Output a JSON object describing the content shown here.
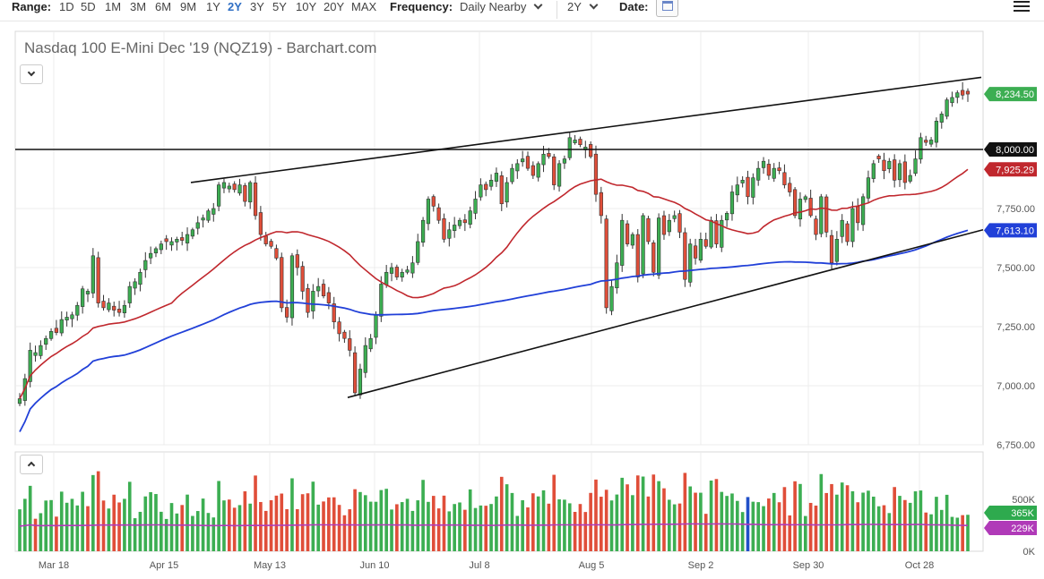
{
  "toolbar": {
    "range_label": "Range:",
    "ranges": [
      "1D",
      "5D",
      "1M",
      "3M",
      "6M",
      "9M",
      "1Y",
      "2Y",
      "3Y",
      "5Y",
      "10Y",
      "20Y",
      "MAX"
    ],
    "active_range": "2Y",
    "frequency_label": "Frequency:",
    "frequency_value": "Daily Nearby",
    "period_value": "2Y",
    "date_label": "Date:"
  },
  "colors": {
    "up": "#3cae52",
    "down": "#e04e39",
    "ma_fast": "#c0272d",
    "ma_slow": "#2140d8",
    "volume_avg": "#b03ab8",
    "volume_highlight": "#2150c8"
  },
  "chart_data": {
    "type": "candlestick",
    "title": "Nasdaq 100 E-Mini Dec '19 (NQZ19) - Barchart.com",
    "x_ticks": [
      "Mar 18",
      "Apr 15",
      "May 13",
      "Jun 10",
      "Jul 8",
      "Aug 5",
      "Sep 2",
      "Sep 30",
      "Oct 28"
    ],
    "y_ticks": [
      "6,750.00",
      "7,000.00",
      "7,250.00",
      "7,500.00",
      "7,750.00",
      "8,000.00"
    ],
    "ylim": [
      6750,
      8400
    ],
    "last_price_label": "8,234.50",
    "ma_fast_label": "7,925.29",
    "ma_slow_label": "7,613.10",
    "horizontal_level_label": "8,000.00",
    "horizontal_level": 8000,
    "upper_trendline": [
      [
        7860,
        8305
      ]
    ],
    "lower_trendline": [
      [
        6950,
        7660
      ]
    ],
    "closes": [
      6945,
      7030,
      7150,
      7140,
      7170,
      7200,
      7230,
      7225,
      7280,
      7290,
      7300,
      7340,
      7410,
      7400,
      7550,
      7350,
      7330,
      7350,
      7320,
      7310,
      7340,
      7420,
      7440,
      7480,
      7530,
      7560,
      7580,
      7600,
      7610,
      7610,
      7620,
      7615,
      7640,
      7660,
      7690,
      7710,
      7740,
      7750,
      7850,
      7860,
      7845,
      7830,
      7850,
      7780,
      7860,
      7720,
      7640,
      7600,
      7590,
      7540,
      7330,
      7290,
      7550,
      7500,
      7400,
      7310,
      7400,
      7420,
      7380,
      7350,
      7270,
      7220,
      7200,
      7150,
      6970,
      7070,
      7170,
      7200,
      7300,
      7430,
      7480,
      7500,
      7460,
      7480,
      7490,
      7520,
      7610,
      7700,
      7790,
      7760,
      7700,
      7620,
      7660,
      7680,
      7700,
      7690,
      7740,
      7790,
      7850,
      7830,
      7870,
      7900,
      7770,
      7860,
      7920,
      7940,
      7960,
      7920,
      7890,
      7940,
      7980,
      7970,
      7850,
      7940,
      7960,
      8050,
      8040,
      8020,
      8010,
      7970,
      7810,
      7720,
      7330,
      7420,
      7520,
      7700,
      7600,
      7640,
      7460,
      7720,
      7610,
      7480,
      7710,
      7640,
      7700,
      7720,
      7650,
      7450,
      7600,
      7540,
      7620,
      7590,
      7700,
      7600,
      7700,
      7730,
      7820,
      7850,
      7870,
      7800,
      7880,
      7920,
      7950,
      7890,
      7920,
      7910,
      7850,
      7820,
      7720,
      7790,
      7800,
      7720,
      7640,
      7800,
      7650,
      7520,
      7620,
      7700,
      7610,
      7750,
      7690,
      7800,
      7880,
      7940,
      7960,
      7910,
      7950,
      7870,
      7940,
      7860,
      7890,
      7960,
      8050,
      8030,
      8040,
      8120,
      8150,
      8210,
      8220,
      8240,
      8230,
      8234.5
    ],
    "volume_axis_ticks": [
      "500K",
      "0K"
    ],
    "volume_last_label": "365K",
    "volume_avg_label": "229K"
  }
}
